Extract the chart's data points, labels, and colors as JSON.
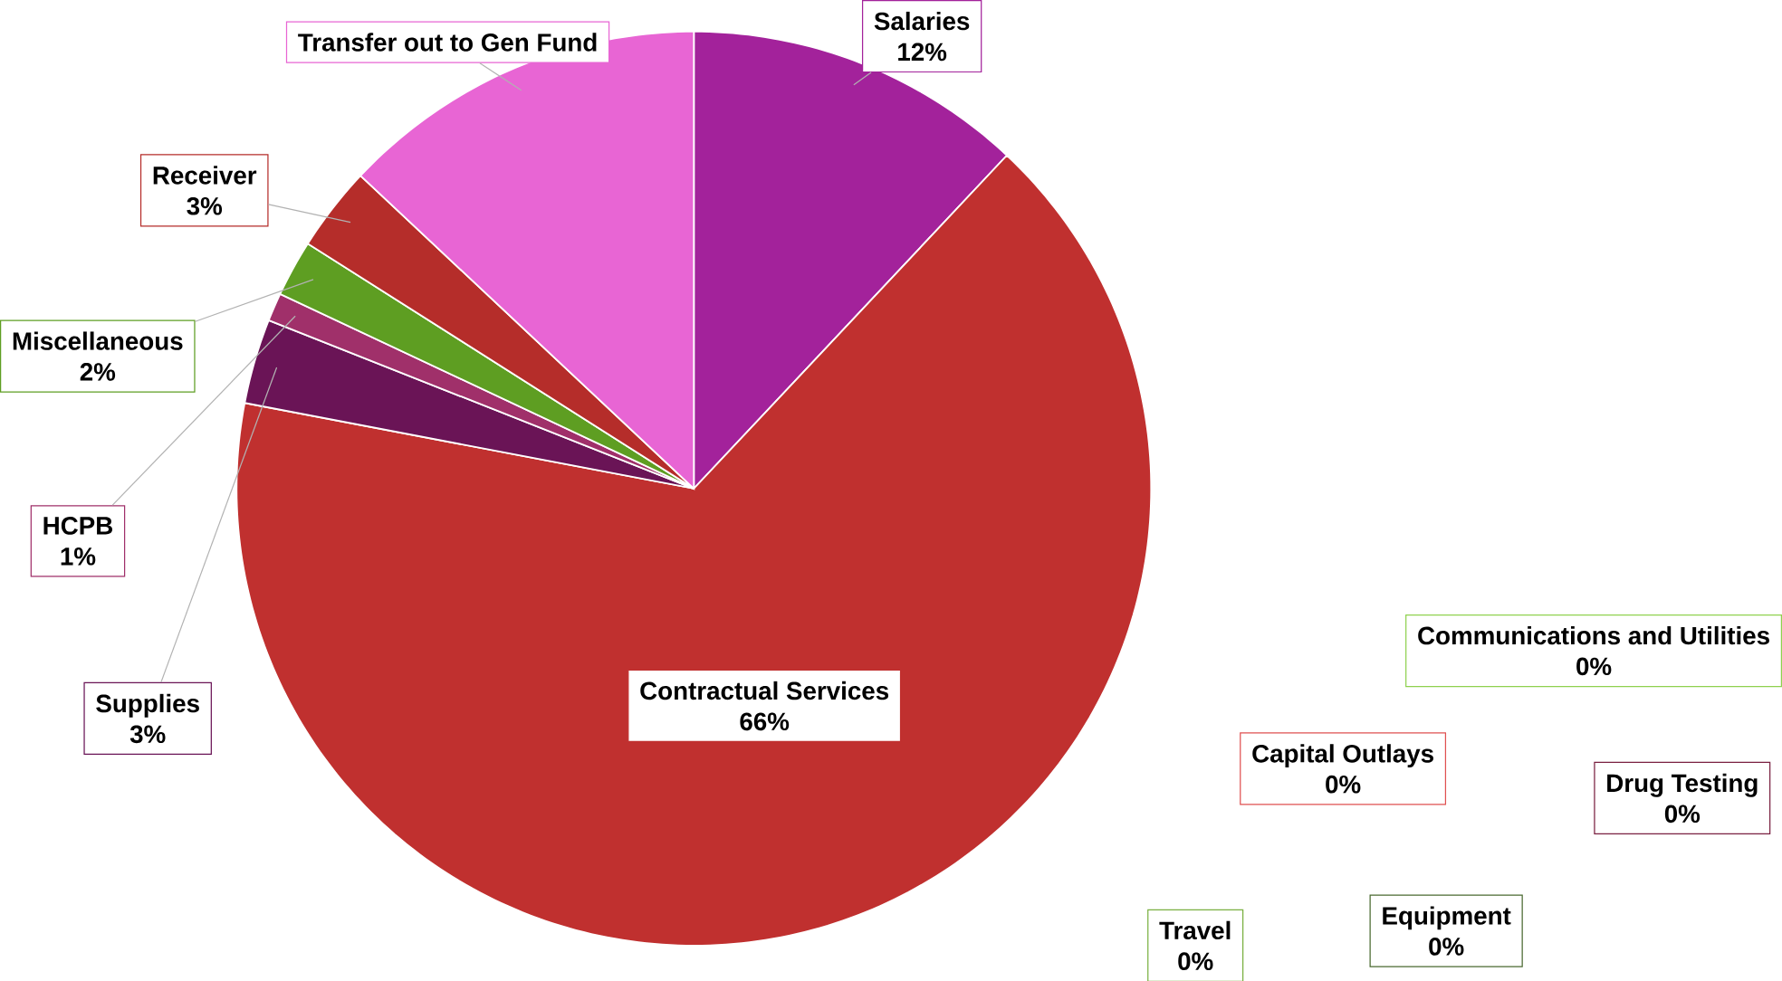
{
  "chart_data": {
    "type": "pie",
    "categories": [
      "Salaries",
      "Communications and Utilities",
      "Contractual Services",
      "Capital Outlays",
      "Drug Testing",
      "Equipment",
      "Travel",
      "Supplies",
      "HCPB",
      "Miscellaneous",
      "Receiver",
      "Transfer out to Gen Fund"
    ],
    "values": [
      12,
      0,
      66,
      0,
      0,
      0,
      0,
      3,
      1,
      2,
      3,
      13
    ],
    "value_labels": [
      "12%",
      "0%",
      "66%",
      "0%",
      "0%",
      "0%",
      "0%",
      "3%",
      "1%",
      "2%",
      "3%",
      null
    ],
    "colors": [
      "#a3229b",
      "#8fd14f",
      "#c0302f",
      "#e05050",
      "#7a2040",
      "#4a6a30",
      "#7ab040",
      "#6a1456",
      "#a0306a",
      "#5e9e22",
      "#b52d2a",
      "#e865d4"
    ]
  }
}
